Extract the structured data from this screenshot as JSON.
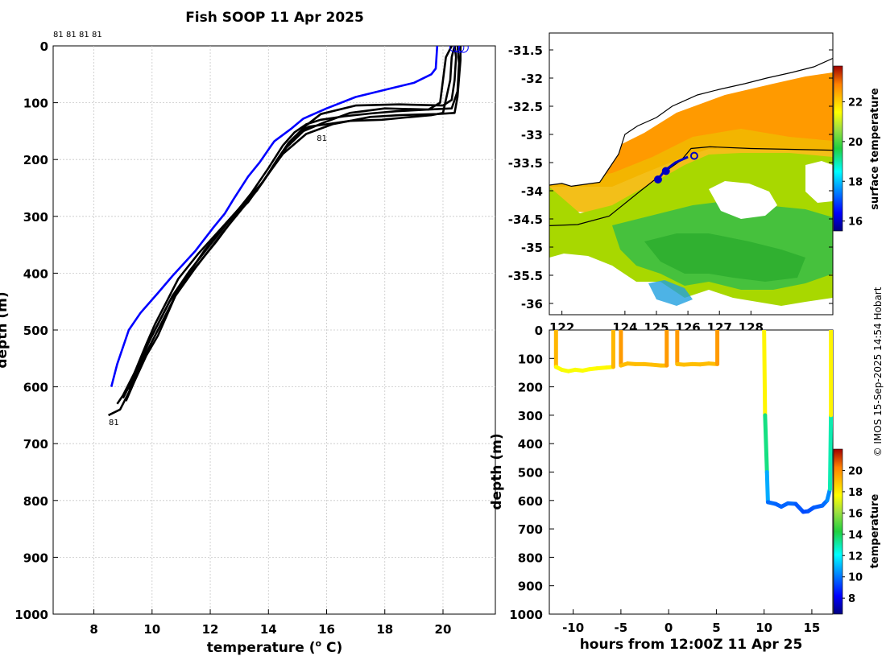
{
  "chart_data": [
    {
      "type": "line",
      "title": "Fish SOOP 11 Apr 2025",
      "xlabel": "temperature (",
      "xlabel_sup": "o",
      "xlabel_unit": " C)",
      "ylabel": "depth (m)",
      "xlim": [
        6.6,
        21.8
      ],
      "ylim": [
        0,
        1000
      ],
      "y_reversed": true,
      "grid": true,
      "x_ticks": [
        8,
        10,
        12,
        14,
        16,
        18,
        20
      ],
      "y_ticks": [
        0,
        100,
        200,
        300,
        400,
        500,
        600,
        700,
        800,
        900,
        1000
      ],
      "top_labels": [
        "81",
        "81",
        "81",
        "81"
      ],
      "profile_labels": [
        {
          "text": "81",
          "temp": 15.55,
          "depth": 150
        },
        {
          "text": "81",
          "temp": 8.4,
          "depth": 650
        }
      ],
      "series": [
        {
          "name": "latest profile",
          "color": "#0000ff",
          "points": [
            [
              19.8,
              0
            ],
            [
              19.75,
              40
            ],
            [
              19.6,
              50
            ],
            [
              19.0,
              65
            ],
            [
              18.2,
              75
            ],
            [
              17.0,
              90
            ],
            [
              16.0,
              110
            ],
            [
              15.2,
              128
            ],
            [
              14.8,
              145
            ],
            [
              14.2,
              168
            ],
            [
              14.1,
              175
            ],
            [
              13.7,
              205
            ],
            [
              13.3,
              230
            ],
            [
              12.8,
              270
            ],
            [
              12.5,
              295
            ],
            [
              12.1,
              320
            ],
            [
              11.5,
              360
            ],
            [
              10.7,
              405
            ],
            [
              10.2,
              435
            ],
            [
              9.6,
              470
            ],
            [
              9.2,
              500
            ],
            [
              8.8,
              560
            ],
            [
              8.6,
              600
            ]
          ]
        },
        {
          "name": "profile 1",
          "color": "#000000",
          "points": [
            [
              20.4,
              0
            ],
            [
              20.45,
              20
            ],
            [
              20.4,
              60
            ],
            [
              20.3,
              95
            ],
            [
              20.0,
              105
            ],
            [
              18.5,
              103
            ],
            [
              17.0,
              105
            ],
            [
              15.8,
              120
            ],
            [
              15.3,
              140
            ],
            [
              14.8,
              165
            ],
            [
              14.4,
              195
            ],
            [
              13.8,
              240
            ],
            [
              13.2,
              280
            ],
            [
              12.4,
              330
            ],
            [
              11.5,
              390
            ],
            [
              10.8,
              440
            ],
            [
              10.4,
              480
            ],
            [
              10.0,
              520
            ],
            [
              9.6,
              560
            ],
            [
              9.2,
              610
            ],
            [
              8.9,
              640
            ],
            [
              8.5,
              650
            ]
          ]
        },
        {
          "name": "profile 2",
          "color": "#000000",
          "points": [
            [
              20.5,
              0
            ],
            [
              20.55,
              30
            ],
            [
              20.5,
              80
            ],
            [
              20.3,
              110
            ],
            [
              19.5,
              112
            ],
            [
              18.0,
              110
            ],
            [
              16.8,
              118
            ],
            [
              15.9,
              135
            ],
            [
              15.2,
              150
            ],
            [
              14.6,
              180
            ],
            [
              14.2,
              210
            ],
            [
              13.6,
              255
            ],
            [
              13.0,
              290
            ],
            [
              12.2,
              345
            ],
            [
              11.4,
              395
            ],
            [
              10.8,
              440
            ],
            [
              10.5,
              475
            ],
            [
              10.2,
              510
            ],
            [
              9.8,
              545
            ],
            [
              9.4,
              590
            ],
            [
              9.1,
              625
            ]
          ]
        },
        {
          "name": "profile 3",
          "color": "#000000",
          "points": [
            [
              20.6,
              0
            ],
            [
              20.6,
              25
            ],
            [
              20.5,
              90
            ],
            [
              20.4,
              118
            ],
            [
              19.8,
              120
            ],
            [
              18.5,
              122
            ],
            [
              17.5,
              125
            ],
            [
              16.2,
              138
            ],
            [
              15.3,
              155
            ],
            [
              14.5,
              190
            ],
            [
              14.0,
              225
            ],
            [
              13.3,
              275
            ],
            [
              12.6,
              310
            ],
            [
              11.8,
              360
            ],
            [
              11.2,
              405
            ],
            [
              10.6,
              450
            ],
            [
              10.2,
              490
            ],
            [
              9.9,
              520
            ],
            [
              9.5,
              565
            ],
            [
              9.0,
              615
            ],
            [
              8.8,
              630
            ]
          ]
        },
        {
          "name": "profile 4",
          "color": "#000000",
          "points": [
            [
              20.4,
              0
            ],
            [
              20.3,
              20
            ],
            [
              20.25,
              60
            ],
            [
              20.0,
              118
            ],
            [
              19.6,
              122
            ],
            [
              18.7,
              126
            ],
            [
              17.9,
              130
            ],
            [
              16.8,
              132
            ],
            [
              16.0,
              138
            ],
            [
              15.4,
              142
            ],
            [
              15.1,
              150
            ],
            [
              14.7,
              170
            ],
            [
              14.3,
              200
            ],
            [
              13.8,
              240
            ],
            [
              13.1,
              280
            ],
            [
              12.4,
              320
            ],
            [
              11.6,
              365
            ],
            [
              10.9,
              410
            ],
            [
              10.5,
              450
            ],
            [
              10.1,
              490
            ],
            [
              9.8,
              525
            ],
            [
              9.4,
              575
            ],
            [
              9.2,
              605
            ]
          ]
        },
        {
          "name": "profile 5",
          "color": "#000000",
          "points": [
            [
              20.3,
              0
            ],
            [
              20.1,
              20
            ],
            [
              20.0,
              60
            ],
            [
              19.9,
              100
            ],
            [
              19.5,
              112
            ],
            [
              18.4,
              115
            ],
            [
              17.5,
              119
            ],
            [
              16.6,
              124
            ],
            [
              15.8,
              130
            ],
            [
              15.3,
              138
            ],
            [
              14.9,
              152
            ],
            [
              14.5,
              175
            ],
            [
              14.0,
              215
            ],
            [
              13.4,
              260
            ],
            [
              12.7,
              305
            ],
            [
              12.0,
              350
            ],
            [
              11.3,
              395
            ],
            [
              10.7,
              440
            ],
            [
              10.3,
              480
            ],
            [
              9.9,
              520
            ],
            [
              9.6,
              555
            ],
            [
              9.2,
              600
            ],
            [
              9.0,
              620
            ]
          ]
        }
      ]
    },
    {
      "type": "heatmap",
      "xlim": [
        121.6,
        130.6
      ],
      "ylim": [
        -36.2,
        -31.2
      ],
      "y_ticks": [
        -31.5,
        -32,
        -32.5,
        -33,
        -33.5,
        -34,
        -34.5,
        -35,
        -35.5,
        -36
      ],
      "x_ticks": [
        122,
        124,
        125,
        126,
        127,
        128
      ],
      "x_tick_labels": [
        "122",
        "124",
        "125",
        "126",
        "127",
        "128"
      ],
      "colorbar": {
        "label": "surface temperature",
        "range": [
          15.5,
          23.8
        ],
        "ticks": [
          16,
          18,
          20,
          22
        ]
      },
      "track": {
        "color": "#0000c0",
        "points": [
          [
            125.05,
            -33.8
          ],
          [
            125.25,
            -33.65
          ],
          [
            125.6,
            -33.5
          ],
          [
            126.0,
            -33.4
          ]
        ],
        "markers": [
          [
            125.05,
            -33.8
          ],
          [
            125.3,
            -33.65
          ]
        ],
        "end_marker": [
          126.2,
          -33.38
        ]
      },
      "shelf_contour": [
        [
          121.6,
          -34.62
        ],
        [
          122.5,
          -34.6
        ],
        [
          123.5,
          -34.45
        ],
        [
          124.5,
          -34.0
        ],
        [
          125.3,
          -33.65
        ],
        [
          125.8,
          -33.45
        ],
        [
          126.1,
          -33.25
        ],
        [
          126.7,
          -33.22
        ],
        [
          128.0,
          -33.25
        ],
        [
          130.6,
          -33.28
        ]
      ],
      "coast": [
        [
          121.6,
          -33.9
        ],
        [
          122.0,
          -33.87
        ],
        [
          122.3,
          -33.92
        ],
        [
          122.8,
          -33.88
        ],
        [
          123.2,
          -33.85
        ],
        [
          123.5,
          -33.6
        ],
        [
          123.8,
          -33.35
        ],
        [
          124.0,
          -33.0
        ],
        [
          124.4,
          -32.85
        ],
        [
          125.0,
          -32.7
        ],
        [
          125.5,
          -32.5
        ],
        [
          126.3,
          -32.3
        ],
        [
          127.0,
          -32.2
        ],
        [
          127.8,
          -32.1
        ],
        [
          128.5,
          -32.0
        ],
        [
          129.3,
          -31.9
        ],
        [
          130.0,
          -31.8
        ],
        [
          130.6,
          -31.65
        ]
      ]
    },
    {
      "type": "scatter",
      "xlabel": "hours from 12:00Z 11 Apr 25",
      "ylabel": "depth (m)",
      "xlim": [
        -12.5,
        17.2
      ],
      "ylim": [
        0,
        1000
      ],
      "y_reversed": true,
      "x_ticks": [
        -10,
        -5,
        0,
        5,
        10,
        15
      ],
      "y_ticks": [
        0,
        100,
        200,
        300,
        400,
        500,
        600,
        700,
        800,
        900,
        1000
      ],
      "colorbar": {
        "label": "temperature",
        "range": [
          6.5,
          22
        ],
        "ticks": [
          8,
          10,
          12,
          14,
          16,
          18,
          20
        ]
      },
      "segments": [
        {
          "points": [
            [
              -11.8,
              0
            ],
            [
              -11.8,
              130
            ],
            [
              -11.2,
              140
            ],
            [
              -10.5,
              145
            ],
            [
              -9.8,
              140
            ],
            [
              -9.0,
              143
            ],
            [
              -8.3,
              138
            ],
            [
              -7.5,
              135
            ],
            [
              -6.5,
              132
            ],
            [
              -5.8,
              130
            ],
            [
              -5.8,
              0
            ]
          ],
          "surface_temp": 20.5,
          "bottom_temp": 17.5
        },
        {
          "points": [
            [
              -5.0,
              0
            ],
            [
              -5.0,
              125
            ],
            [
              -4.3,
              118
            ],
            [
              -3.5,
              120
            ],
            [
              -2.6,
              120
            ],
            [
              -1.8,
              122
            ],
            [
              -0.8,
              125
            ],
            [
              -0.2,
              125
            ],
            [
              -0.2,
              0
            ]
          ],
          "surface_temp": 20.5,
          "bottom_temp": 19.0
        },
        {
          "points": [
            [
              0.9,
              0
            ],
            [
              0.9,
              120
            ],
            [
              1.6,
              122
            ],
            [
              2.5,
              120
            ],
            [
              3.3,
              121
            ],
            [
              4.2,
              118
            ],
            [
              5.1,
              120
            ],
            [
              5.1,
              0
            ]
          ],
          "surface_temp": 20.5,
          "bottom_temp": 19.0
        },
        {
          "points": [
            [
              10.0,
              0
            ],
            [
              10.1,
              300
            ],
            [
              10.3,
              500
            ],
            [
              10.4,
              606
            ],
            [
              11.2,
              612
            ],
            [
              11.8,
              622
            ],
            [
              12.5,
              610
            ],
            [
              13.3,
              612
            ],
            [
              14.1,
              640
            ],
            [
              14.6,
              638
            ],
            [
              15.2,
              625
            ],
            [
              16.1,
              618
            ],
            [
              16.6,
              600
            ],
            [
              16.9,
              560
            ],
            [
              17.0,
              300
            ],
            [
              17.0,
              0
            ]
          ],
          "surface_temp": 20.5,
          "bottom_temp": 9.3
        }
      ]
    }
  ],
  "credit": "© IMOS 15-Sep-2025 14:54 Hobart"
}
